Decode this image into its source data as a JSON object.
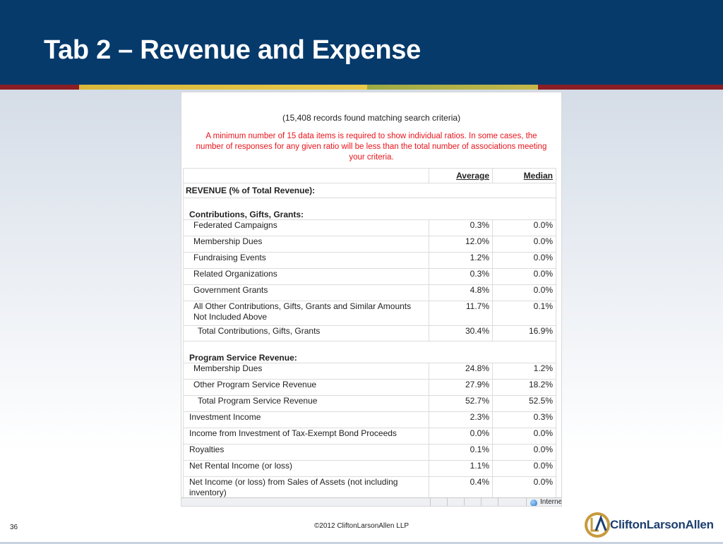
{
  "slide": {
    "title": "Tab 2 – Revenue and Expense",
    "page_number": "36",
    "copyright": "©2012 CliftonLarsonAllen LLP",
    "logo_text": "CliftonLarsonAllen"
  },
  "report": {
    "records_text": "(15,408 records found matching search criteria)",
    "notice_lines": [
      "A minimum number of 15 data items is required to show individual ratios.  In some cases, the",
      "number of responses for any given ratio will be less than the total number of associations meeting",
      "your criteria."
    ],
    "columns": {
      "average": "Average",
      "median": "Median"
    },
    "section_title": "REVENUE (% of Total Revenue):",
    "groups": {
      "contributions": "Contributions, Gifts, Grants:",
      "program": "Program Service Revenue:"
    },
    "rows": [
      {
        "label": "Federated Campaigns",
        "avg": "0.3%",
        "med": "0.0%"
      },
      {
        "label": "Membership Dues",
        "avg": "12.0%",
        "med": "0.0%"
      },
      {
        "label": "Fundraising Events",
        "avg": "1.2%",
        "med": "0.0%"
      },
      {
        "label": "Related Organizations",
        "avg": "0.3%",
        "med": "0.0%"
      },
      {
        "label": "Government Grants",
        "avg": "4.8%",
        "med": "0.0%"
      },
      {
        "label": "All Other Contributions, Gifts, Grants and Similar Amounts Not Included Above",
        "avg": "11.7%",
        "med": "0.1%"
      },
      {
        "label": "Total Contributions, Gifts, Grants",
        "avg": "30.4%",
        "med": "16.9%"
      },
      {
        "label": "Membership Dues",
        "avg": "24.8%",
        "med": "1.2%"
      },
      {
        "label": "Other Program Service Revenue",
        "avg": "27.9%",
        "med": "18.2%"
      },
      {
        "label": "Total Program Service Revenue",
        "avg": "52.7%",
        "med": "52.5%"
      },
      {
        "label": "Investment Income",
        "avg": "2.3%",
        "med": "0.3%"
      },
      {
        "label": "Income from Investment of Tax-Exempt Bond Proceeds",
        "avg": "0.0%",
        "med": "0.0%"
      },
      {
        "label": "Royalties",
        "avg": "0.1%",
        "med": "0.0%"
      },
      {
        "label": "Net Rental Income (or loss)",
        "avg": "1.1%",
        "med": "0.0%"
      },
      {
        "label": "Net Income (or loss) from Sales of Assets (not including inventory)",
        "avg": "0.4%",
        "med": "0.0%"
      }
    ],
    "status_zone": "Internet"
  },
  "colors": {
    "header_bg": "#063a6b",
    "notice_red": "#e8141c",
    "logo_blue": "#1d3f70",
    "logo_gold": "#c89a3c"
  }
}
